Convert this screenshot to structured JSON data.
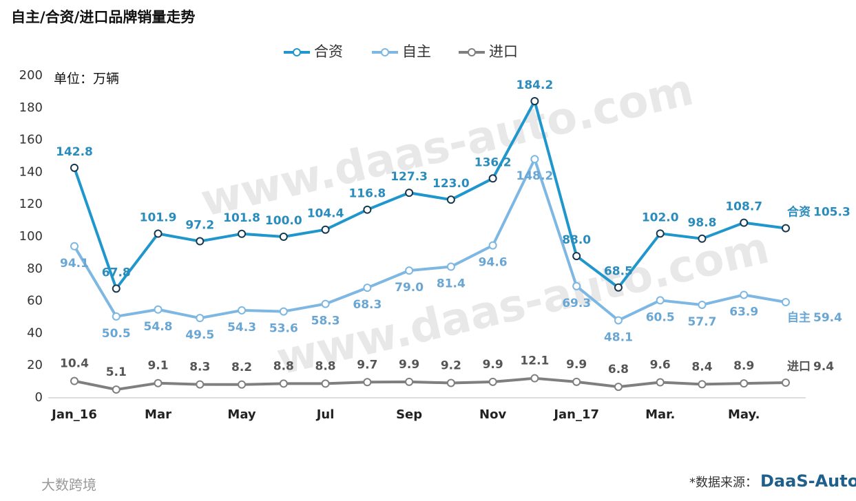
{
  "chart_data": {
    "type": "line",
    "title": "自主/合资/进口品牌销量走势",
    "unit": "单位：万辆",
    "categories": [
      "Jan_16",
      null,
      "Mar",
      null,
      "May",
      null,
      "Jul",
      null,
      "Sep",
      null,
      "Nov",
      null,
      "Jan_17",
      null,
      "Mar.",
      null,
      "May.",
      null
    ],
    "series": [
      {
        "name": "合资",
        "color": "#1f96cc",
        "values": [
          142.8,
          67.8,
          101.9,
          97.2,
          101.8,
          100.0,
          104.4,
          116.8,
          127.3,
          123.0,
          136.2,
          184.2,
          88.0,
          68.5,
          102.0,
          98.8,
          108.7,
          105.3
        ],
        "value_labels": [
          "142.8",
          "67.8",
          "101.9",
          "97.2",
          "101.8",
          "100.0",
          "104.4",
          "116.8",
          "127.3",
          "123.0",
          "136.2",
          "184.2",
          "88.0",
          "68.5",
          "102.0",
          "98.8",
          "108.7",
          "105.3"
        ]
      },
      {
        "name": "自主",
        "color": "#7db7e2",
        "values": [
          94.1,
          50.5,
          54.8,
          49.5,
          54.3,
          53.6,
          58.3,
          68.3,
          79.0,
          81.4,
          94.6,
          148.2,
          69.3,
          48.1,
          60.5,
          57.7,
          63.9,
          59.4
        ],
        "value_labels": [
          "94.1",
          "50.5",
          "54.8",
          "49.5",
          "54.3",
          "53.6",
          "58.3",
          "68.3",
          "79.0",
          "81.4",
          "94.6",
          "148.2",
          "69.3",
          "48.1",
          "60.5",
          "57.7",
          "63.9",
          "59.4"
        ]
      },
      {
        "name": "进口",
        "color": "#7f7f7f",
        "values": [
          10.4,
          5.1,
          9.1,
          8.3,
          8.2,
          8.8,
          8.8,
          9.7,
          9.9,
          9.2,
          9.9,
          12.1,
          9.9,
          6.8,
          9.6,
          8.4,
          8.9,
          9.4
        ],
        "value_labels": [
          "10.4",
          "5.1",
          "9.1",
          "8.3",
          "8.2",
          "8.8",
          "8.8",
          "9.7",
          "9.9",
          "9.2",
          "9.9",
          "12.1",
          "9.9",
          "6.8",
          "9.6",
          "8.4",
          "8.9",
          "9.4"
        ]
      }
    ],
    "ylim": [
      0,
      200
    ],
    "yticks": [
      0,
      20,
      40,
      60,
      80,
      100,
      120,
      140,
      160,
      180,
      200
    ],
    "grid": false,
    "legend": "top"
  },
  "watermark": "www.daas-auto.com",
  "footer": {
    "brand": "大数跨境",
    "source": "*数据来源：",
    "logo": "DaaS-Auto"
  }
}
